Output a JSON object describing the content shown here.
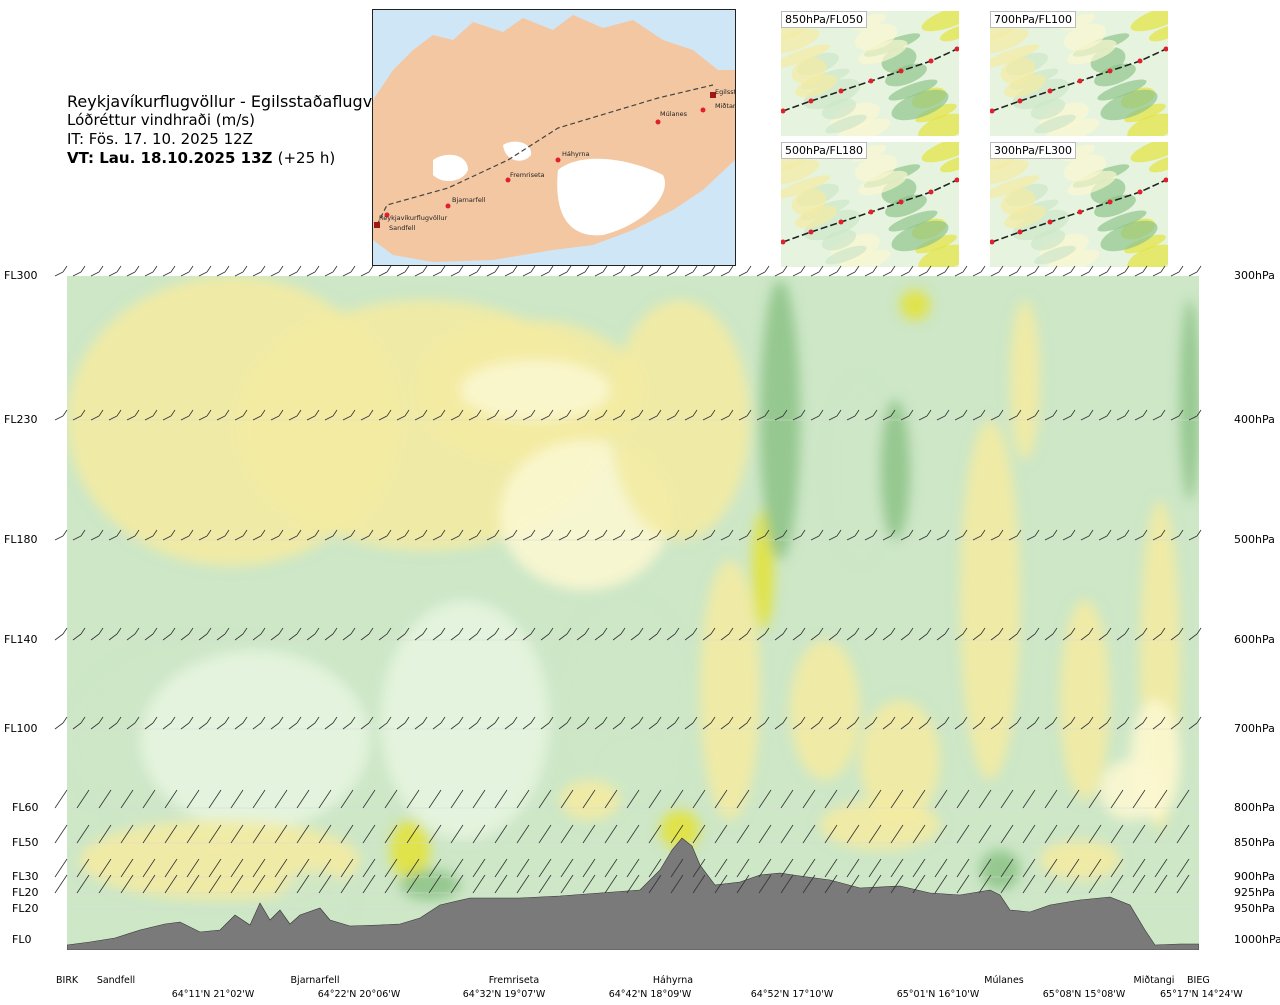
{
  "title": {
    "route": "Reykjavíkurflugvöllur - Egilsstaðaflugvöllur",
    "variable": "Lóðréttur vindhraði (m/s)",
    "init_time": "IT: Fös. 17. 10. 2025 12Z",
    "valid_time": "VT: Lau. 18.10.2025 13Z",
    "lead": "(+25 h)"
  },
  "map": {
    "waypoints": [
      "Reykjavíkurflugvöllur",
      "Sandfell",
      "Bjarnarfell",
      "Fremriseta",
      "Háhyrna",
      "Múlanes",
      "Miðtangi",
      "Egilsstaðir"
    ],
    "colors": {
      "land": "#f3c7a2",
      "sea": "#cfe6f7",
      "glacier": "#ffffff",
      "route": "#444444",
      "point": "#e0202a"
    }
  },
  "panels": [
    {
      "label": "850hPa/FL050"
    },
    {
      "label": "700hPa/FL100"
    },
    {
      "label": "500hPa/FL180"
    },
    {
      "label": "300hPa/FL300"
    }
  ],
  "chart_data": {
    "type": "heatmap",
    "title": "Lóðréttur vindhraði (m/s)",
    "levels_fl": [
      "FL300",
      "FL230",
      "FL180",
      "FL140",
      "FL100",
      "FL60",
      "FL50",
      "FL30",
      "FL20",
      "FL20",
      "FL0"
    ],
    "levels_hpa": [
      "300hPa",
      "400hPa",
      "500hPa",
      "600hPa",
      "700hPa",
      "800hPa",
      "850hPa",
      "900hPa",
      "925hPa",
      "950hPa",
      "1000hPa"
    ],
    "wind_barb_levels_hpa": [
      300,
      400,
      500,
      600,
      700,
      800,
      850,
      900,
      925
    ],
    "x_waypoints": [
      "BIRK",
      "Sandfell",
      "Bjarnarfell",
      "Fremriseta",
      "Háhyrna",
      "Múlanes",
      "Miðtangi",
      "BIEG"
    ],
    "x_coords": [
      "64°11'N 21°02'W",
      "64°22'N 20°06'W",
      "64°32'N 19°07'W",
      "64°42'N 18°09'W",
      "64°52'N 17°10'W",
      "65°01'N 16°10'W",
      "65°08'N 15°08'W",
      "65°17'N 14°24'W"
    ],
    "colors": {
      "strong_up": "#e2e23a",
      "up": "#f3eba2",
      "weak_up": "#fbf7d0",
      "neutral": "#ffffff",
      "weak_down": "#e6f4df",
      "down": "#cde7c7",
      "strong_down": "#8fc48a",
      "terrain": "#7a7a7a"
    }
  }
}
